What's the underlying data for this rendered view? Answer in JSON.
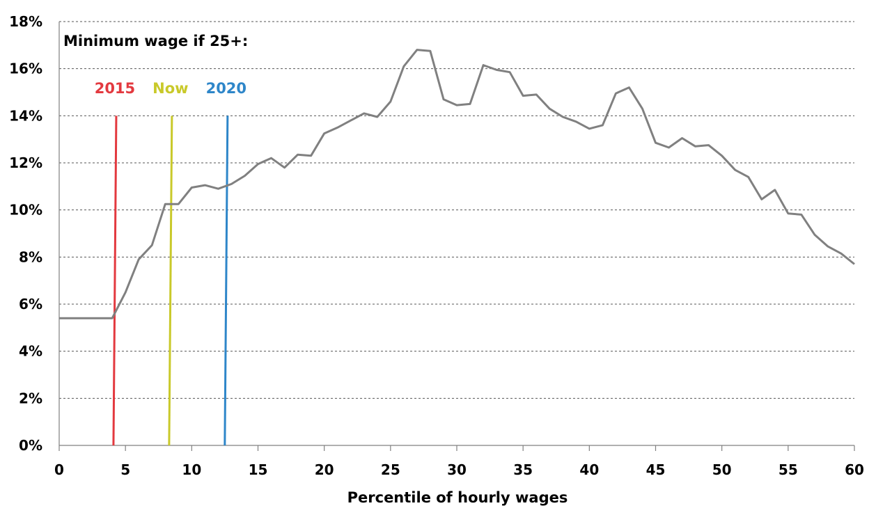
{
  "chart_data": {
    "type": "line",
    "title": "",
    "xlabel": "Percentile of hourly wages",
    "ylabel": "",
    "xlim": [
      0,
      60
    ],
    "ylim": [
      0,
      18
    ],
    "x_ticks": [
      0,
      5,
      10,
      15,
      20,
      25,
      30,
      35,
      40,
      45,
      50,
      55,
      60
    ],
    "y_ticks": [
      0,
      2,
      4,
      6,
      8,
      10,
      12,
      14,
      16,
      18
    ],
    "y_tick_labels": [
      "0%",
      "2%",
      "4%",
      "6%",
      "8%",
      "10%",
      "12%",
      "14%",
      "16%",
      "18%"
    ],
    "grid": "horizontal dashed",
    "series": [
      {
        "color": "#808080",
        "x": [
          0,
          1,
          2,
          3,
          4,
          5,
          6,
          7,
          8,
          9,
          10,
          11,
          12,
          13,
          14,
          15,
          16,
          17,
          18,
          19,
          20,
          21,
          22,
          23,
          24,
          25,
          26,
          27,
          28,
          29,
          30,
          31,
          32,
          33,
          34,
          35,
          36,
          37,
          38,
          39,
          40,
          41,
          42,
          43,
          44,
          45,
          46,
          47,
          48,
          49,
          50,
          51,
          52,
          53,
          54,
          55,
          56,
          57,
          58,
          59,
          60
        ],
        "values": [
          5.4,
          5.4,
          5.4,
          5.4,
          5.4,
          6.5,
          7.9,
          8.5,
          10.25,
          10.25,
          10.95,
          11.05,
          10.9,
          11.1,
          11.45,
          11.95,
          12.2,
          11.8,
          12.35,
          12.3,
          13.25,
          13.5,
          13.8,
          14.1,
          13.95,
          14.6,
          16.1,
          16.8,
          16.75,
          14.7,
          14.45,
          14.5,
          16.15,
          15.95,
          15.85,
          14.85,
          14.9,
          14.3,
          13.95,
          13.75,
          13.45,
          13.6,
          14.95,
          15.2,
          14.3,
          12.85,
          12.65,
          13.05,
          12.7,
          12.75,
          12.3,
          11.7,
          11.4,
          10.45,
          10.85,
          9.85,
          9.8,
          8.95,
          8.45,
          8.15,
          7.7
        ]
      }
    ],
    "annotations": {
      "title": "Minimum wage if 25+:",
      "markers": [
        {
          "label": "2015",
          "x": 4.2,
          "color": "#e3393f"
        },
        {
          "label": "Now",
          "x": 8.4,
          "color": "#c9c92a"
        },
        {
          "label": "2020",
          "x": 12.6,
          "color": "#2e86c9"
        }
      ],
      "marker_top_value": 14
    }
  }
}
